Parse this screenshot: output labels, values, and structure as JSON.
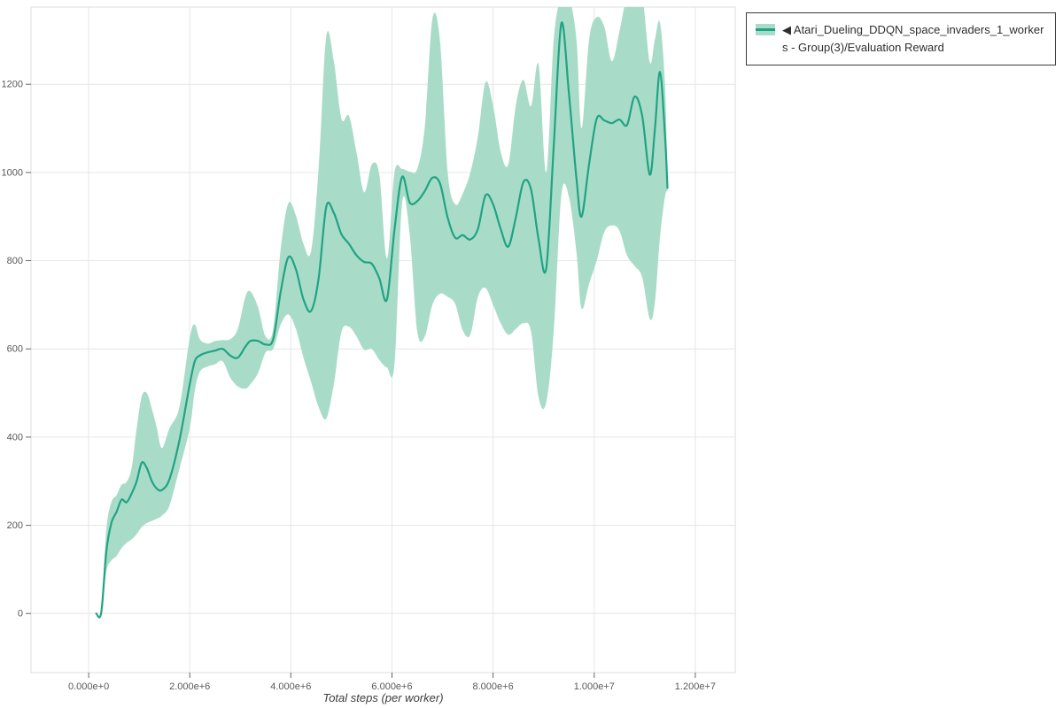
{
  "legend": {
    "marker": "◀",
    "label": "◀ Atari_Dueling_DDQN_space_invaders_1_workers - Group(3)/Evaluation Reward"
  },
  "chart_data": {
    "type": "line",
    "title": "",
    "xlabel": "Total steps (per worker)",
    "ylabel": "",
    "legend_position": "outside-top-right",
    "grid": true,
    "band_meaning": "min-max / confidence band around mean evaluation reward",
    "x_unit": "steps (values below given in millions)",
    "xlim_millions": [
      -1.14,
      12.79
    ],
    "ylim": [
      -134,
      1375
    ],
    "x_ticks": [
      {
        "v": 0,
        "label": "0.000e+0"
      },
      {
        "v": 2,
        "label": "2.000e+6"
      },
      {
        "v": 4,
        "label": "4.000e+6"
      },
      {
        "v": 6,
        "label": "6.000e+6"
      },
      {
        "v": 8,
        "label": "8.000e+6"
      },
      {
        "v": 10,
        "label": "1.000e+7"
      },
      {
        "v": 12,
        "label": "1.200e+7"
      }
    ],
    "y_ticks": [
      {
        "v": 0,
        "label": "0"
      },
      {
        "v": 200,
        "label": "200"
      },
      {
        "v": 400,
        "label": "400"
      },
      {
        "v": 600,
        "label": "600"
      },
      {
        "v": 800,
        "label": "800"
      },
      {
        "v": 1000,
        "label": "1000"
      },
      {
        "v": 1200,
        "label": "1200"
      }
    ],
    "colors": {
      "line": "#20a383",
      "band": "#a9dcc8",
      "grid": "#e6e6e6",
      "outline": "#dddddd",
      "tick_mark": "#666666",
      "tick_label": "#595959",
      "axis_title": "#3c3c3c"
    },
    "series": [
      {
        "name": "Atari_Dueling_DDQN_space_invaders_1_workers - Group(3)/Evaluation Reward",
        "x_millions": [
          0.15,
          0.25,
          0.35,
          0.45,
          0.55,
          0.65,
          0.75,
          0.85,
          0.95,
          1.05,
          1.15,
          1.25,
          1.35,
          1.45,
          1.6,
          1.8,
          2.0,
          2.1,
          2.2,
          2.35,
          2.5,
          2.65,
          2.8,
          2.95,
          3.1,
          3.2,
          3.35,
          3.5,
          3.65,
          3.8,
          3.95,
          4.1,
          4.25,
          4.4,
          4.55,
          4.7,
          4.85,
          5.0,
          5.15,
          5.3,
          5.45,
          5.6,
          5.75,
          5.9,
          6.05,
          6.2,
          6.35,
          6.5,
          6.65,
          6.8,
          6.95,
          7.1,
          7.25,
          7.4,
          7.55,
          7.7,
          7.85,
          8.0,
          8.15,
          8.3,
          8.45,
          8.6,
          8.75,
          8.9,
          9.05,
          9.2,
          9.35,
          9.5,
          9.65,
          9.75,
          9.9,
          10.05,
          10.2,
          10.35,
          10.5,
          10.65,
          10.8,
          10.95,
          11.1,
          11.2,
          11.3,
          11.4,
          11.45
        ],
        "mean": [
          0,
          2,
          140,
          205,
          230,
          258,
          252,
          272,
          300,
          342,
          330,
          300,
          283,
          280,
          305,
          395,
          520,
          572,
          585,
          592,
          596,
          600,
          585,
          580,
          605,
          618,
          618,
          610,
          622,
          730,
          808,
          780,
          712,
          686,
          760,
          922,
          908,
          860,
          838,
          812,
          797,
          793,
          760,
          712,
          870,
          990,
          932,
          935,
          958,
          988,
          975,
          898,
          852,
          858,
          848,
          872,
          948,
          928,
          872,
          832,
          898,
          978,
          962,
          848,
          782,
          1060,
          1338,
          1180,
          985,
          900,
          1020,
          1122,
          1118,
          1112,
          1120,
          1108,
          1172,
          1128,
          995,
          1098,
          1228,
          1085,
          965
        ],
        "lower": [
          0,
          0,
          95,
          120,
          130,
          148,
          160,
          168,
          180,
          196,
          205,
          210,
          215,
          222,
          245,
          330,
          420,
          505,
          548,
          560,
          565,
          572,
          535,
          515,
          510,
          520,
          545,
          592,
          600,
          655,
          678,
          645,
          580,
          525,
          468,
          442,
          520,
          638,
          650,
          628,
          598,
          600,
          575,
          558,
          565,
          930,
          860,
          640,
          628,
          700,
          725,
          718,
          702,
          642,
          632,
          718,
          738,
          700,
          658,
          632,
          645,
          658,
          640,
          490,
          478,
          640,
          948,
          945,
          818,
          692,
          748,
          800,
          865,
          880,
          868,
          812,
          788,
          762,
          668,
          705,
          852,
          945,
          958
        ],
        "upper": [
          0,
          5,
          190,
          252,
          268,
          292,
          298,
          330,
          420,
          492,
          500,
          465,
          420,
          375,
          420,
          470,
          625,
          655,
          622,
          612,
          618,
          620,
          622,
          645,
          718,
          730,
          695,
          628,
          645,
          828,
          930,
          902,
          838,
          822,
          1010,
          1308,
          1252,
          1122,
          1128,
          1045,
          955,
          1018,
          995,
          805,
          1000,
          1008,
          1002,
          1008,
          1105,
          1348,
          1298,
          1002,
          928,
          952,
          1000,
          1082,
          1205,
          1152,
          1048,
          1018,
          1152,
          1210,
          1150,
          1245,
          1000,
          1302,
          1400,
          1400,
          1300,
          1100,
          1302,
          1352,
          1330,
          1252,
          1320,
          1400,
          1400,
          1400,
          1250,
          1302,
          1340,
          1200,
          972
        ]
      }
    ]
  }
}
